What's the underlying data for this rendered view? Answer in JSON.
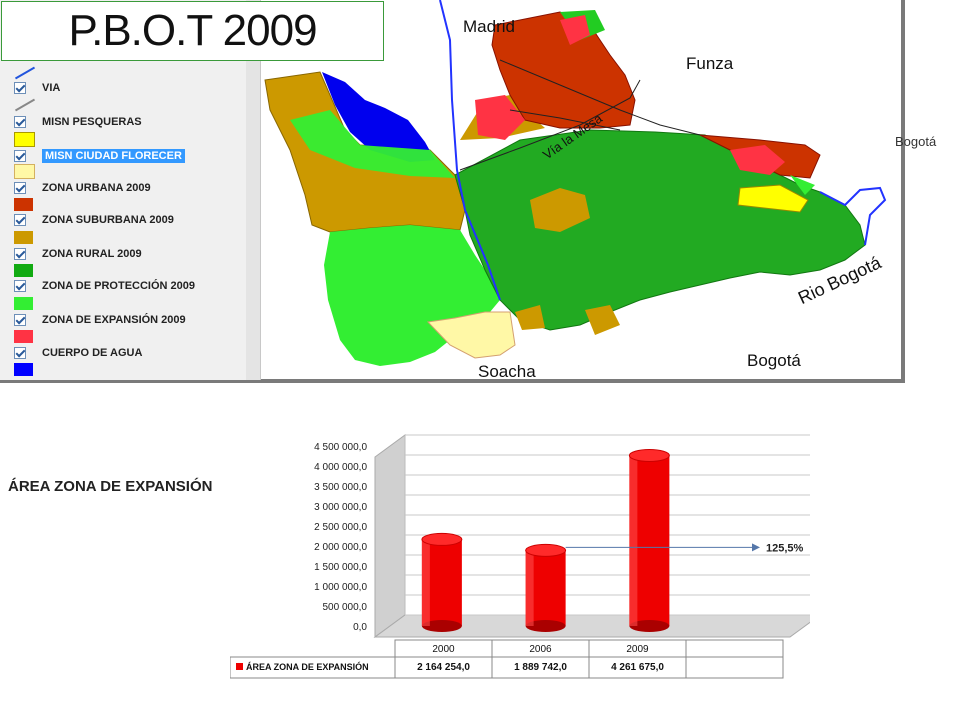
{
  "slide_title": "P.B.O.T 2009",
  "legend": {
    "items": [
      {
        "label": "VIA"
      },
      {
        "label": "MISN PESQUERAS"
      },
      {
        "label": "MISN CIUDAD FLORECER"
      },
      {
        "label": "ZONA URBANA 2009"
      },
      {
        "label": "ZONA SUBURBANA 2009"
      },
      {
        "label": "ZONA RURAL 2009"
      },
      {
        "label": "ZONA DE PROTECCIÓN 2009"
      },
      {
        "label": "ZONA DE EXPANSIÓN 2009"
      },
      {
        "label": "CUERPO DE AGUA"
      }
    ],
    "colors": {
      "urbana": "#fff8a6",
      "suburbana": "#cc3300",
      "rural": "#cc9900",
      "proteccion": "#22aa22",
      "expansion": "#33ee33",
      "misn": "#ffff00",
      "cuerpo_agua_red": "#ff3344",
      "agua": "#0000ff"
    }
  },
  "map": {
    "labels": {
      "madrid": "Madrid",
      "funza": "Funza",
      "bogota_small": "Bogotá",
      "via_la_mesa": "Vía la Mesa",
      "rio_bogota": "Rio Bogotá",
      "bogota": "Bogotá",
      "soacha": "Soacha"
    }
  },
  "chart_heading": "ÁREA ZONA DE EXPANSIÓN",
  "chart_data": {
    "type": "bar",
    "categories": [
      "2000",
      "2006",
      "2009"
    ],
    "series": [
      {
        "name": "ÁREA ZONA DE EXPANSIÓN",
        "values": [
          2164254.0,
          1889742.0,
          4261675.0
        ],
        "color": "#ee0000"
      }
    ],
    "value_labels": [
      "2 164 254,0",
      "1 889 742,0",
      "4 261 675,0"
    ],
    "ylim": [
      0,
      4500000
    ],
    "yticks": [
      {
        "value": 0,
        "label": "0,0"
      },
      {
        "value": 500000,
        "label": "500 000,0"
      },
      {
        "value": 1000000,
        "label": "1 000 000,0"
      },
      {
        "value": 1500000,
        "label": "1 500 000,0"
      },
      {
        "value": 2000000,
        "label": "2 000 000,0"
      },
      {
        "value": 2500000,
        "label": "2 500 000,0"
      },
      {
        "value": 3000000,
        "label": "3 000 000,0"
      },
      {
        "value": 3500000,
        "label": "3 500 000,0"
      },
      {
        "value": 4000000,
        "label": "4 000 000,0"
      },
      {
        "value": 4500000,
        "label": "4 500 000,0"
      }
    ],
    "grid": true,
    "legend": "data-table",
    "annotation": {
      "text": "125,5%",
      "from_category": "2006"
    }
  }
}
